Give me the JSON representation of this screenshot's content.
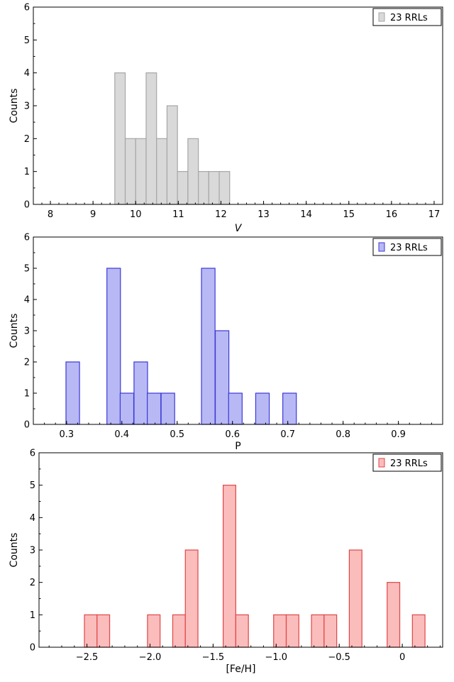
{
  "chart_data": [
    {
      "type": "bar",
      "xlabel": "V",
      "xlabel_italic": true,
      "ylabel": "Counts",
      "xlim": [
        7.6,
        17.2
      ],
      "ylim": [
        0,
        6
      ],
      "xticks": [
        8,
        9,
        10,
        11,
        12,
        13,
        14,
        15,
        16,
        17
      ],
      "xtick_labels": [
        "8",
        "9",
        "10",
        "11",
        "12",
        "13",
        "14",
        "15",
        "16",
        "17"
      ],
      "yticks": [
        0,
        1,
        2,
        3,
        4,
        5,
        6
      ],
      "ytick_labels": [
        "0",
        "1",
        "2",
        "3",
        "4",
        "5",
        "6"
      ],
      "bin_width": 0.245,
      "bins": [
        {
          "left": 9.51,
          "count": 4
        },
        {
          "left": 9.755,
          "count": 2
        },
        {
          "left": 10.0,
          "count": 2
        },
        {
          "left": 10.245,
          "count": 4
        },
        {
          "left": 10.49,
          "count": 2
        },
        {
          "left": 10.735,
          "count": 3
        },
        {
          "left": 10.98,
          "count": 1
        },
        {
          "left": 11.225,
          "count": 2
        },
        {
          "left": 11.47,
          "count": 1
        },
        {
          "left": 11.715,
          "count": 1
        },
        {
          "left": 11.96,
          "count": 1
        }
      ],
      "legend": "23 RRLs",
      "legend_position": "top-right",
      "fill": "#d9d9d9",
      "edge": "#a6a6a6"
    },
    {
      "type": "bar",
      "xlabel": "P",
      "xlabel_italic": false,
      "ylabel": "Counts",
      "xlim": [
        0.24,
        0.98
      ],
      "ylim": [
        0,
        6
      ],
      "xticks": [
        0.3,
        0.4,
        0.5,
        0.6,
        0.7,
        0.8,
        0.9
      ],
      "xtick_labels": [
        "0.3",
        "0.4",
        "0.5",
        "0.6",
        "0.7",
        "0.8",
        "0.9"
      ],
      "yticks": [
        0,
        1,
        2,
        3,
        4,
        5,
        6
      ],
      "ytick_labels": [
        "0",
        "1",
        "2",
        "3",
        "4",
        "5",
        "6"
      ],
      "bin_width": 0.0245,
      "bins": [
        {
          "left": 0.299,
          "count": 2
        },
        {
          "left": 0.373,
          "count": 5
        },
        {
          "left": 0.397,
          "count": 1
        },
        {
          "left": 0.422,
          "count": 2
        },
        {
          "left": 0.446,
          "count": 1
        },
        {
          "left": 0.471,
          "count": 1
        },
        {
          "left": 0.544,
          "count": 5
        },
        {
          "left": 0.569,
          "count": 3
        },
        {
          "left": 0.593,
          "count": 1
        },
        {
          "left": 0.642,
          "count": 1
        },
        {
          "left": 0.691,
          "count": 1
        }
      ],
      "legend": "23 RRLs",
      "legend_position": "top-right",
      "fill": "#b8b8f5",
      "edge": "#3a3ad6"
    },
    {
      "type": "bar",
      "xlabel": "[Fe/H]",
      "xlabel_italic": false,
      "ylabel": "Counts",
      "xlim": [
        -2.88,
        0.32
      ],
      "ylim": [
        0,
        6
      ],
      "xticks": [
        -2.5,
        -2.0,
        -1.5,
        -1.0,
        -0.5,
        0
      ],
      "xtick_labels": [
        "−2.5",
        "−2.0",
        "−1.5",
        "−1.0",
        "−0.5",
        "0"
      ],
      "yticks": [
        0,
        1,
        2,
        3,
        4,
        5,
        6
      ],
      "ytick_labels": [
        "0",
        "1",
        "2",
        "3",
        "4",
        "5",
        "6"
      ],
      "bin_width": 0.1,
      "bins": [
        {
          "left": -2.52,
          "count": 1
        },
        {
          "left": -2.42,
          "count": 1
        },
        {
          "left": -2.02,
          "count": 1
        },
        {
          "left": -1.82,
          "count": 1
        },
        {
          "left": -1.72,
          "count": 3
        },
        {
          "left": -1.42,
          "count": 5
        },
        {
          "left": -1.32,
          "count": 1
        },
        {
          "left": -1.02,
          "count": 1
        },
        {
          "left": -0.92,
          "count": 1
        },
        {
          "left": -0.72,
          "count": 1
        },
        {
          "left": -0.62,
          "count": 1
        },
        {
          "left": -0.42,
          "count": 3
        },
        {
          "left": -0.12,
          "count": 2
        },
        {
          "left": 0.08,
          "count": 1
        }
      ],
      "legend": "23 RRLs",
      "legend_position": "top-right",
      "fill": "#fbbcbc",
      "edge": "#e04646"
    }
  ]
}
